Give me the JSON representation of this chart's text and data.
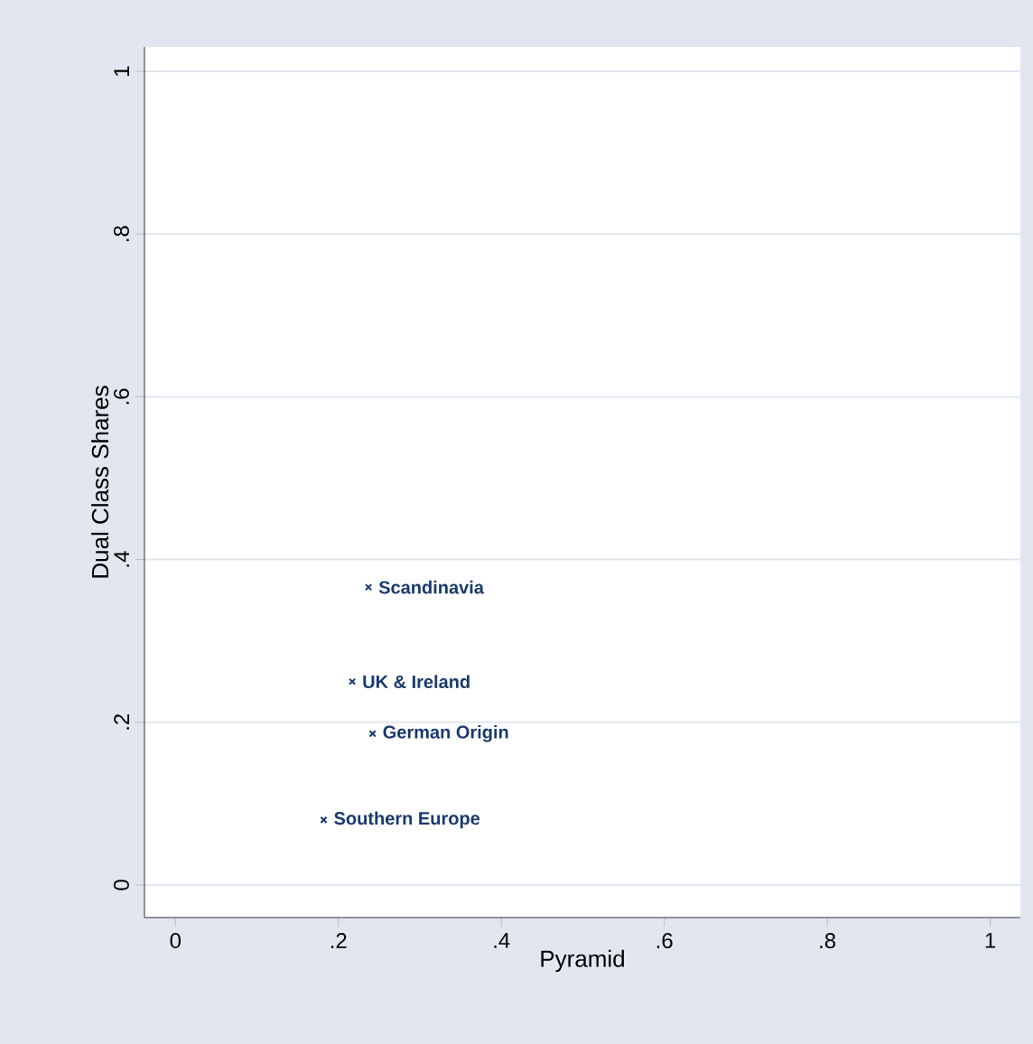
{
  "chart_data": {
    "type": "scatter",
    "xlabel": "Pyramid",
    "ylabel": "Dual Class Shares",
    "x": [
      0.237,
      0.217,
      0.242,
      0.182
    ],
    "values": [
      0.366,
      0.25,
      0.186,
      0.08
    ],
    "color": "#1a3a6e",
    "marker": "cross",
    "grid": "y",
    "xlim": [
      -0.038,
      1.037
    ],
    "ylim": [
      -0.04,
      1.03
    ],
    "xticks": [
      0,
      {
        "value": 0.2,
        "label": ".2"
      },
      {
        "value": 0.4,
        "label": ".4"
      },
      {
        "value": 0.6,
        "label": ".6"
      },
      {
        "value": 0.8,
        "label": ".8"
      },
      1
    ],
    "yticks": [
      0,
      {
        "value": 0.2,
        "label": ".2"
      },
      {
        "value": 0.4,
        "label": ".4"
      },
      {
        "value": 0.6,
        "label": ".6"
      },
      {
        "value": 0.8,
        "label": ".8"
      },
      1
    ],
    "annotations": [
      {
        "text": "Scandinavia",
        "x": 0.237,
        "y": 0.366
      },
      {
        "text": "UK & Ireland",
        "x": 0.217,
        "y": 0.25
      },
      {
        "text": "German Origin",
        "x": 0.242,
        "y": 0.186
      },
      {
        "text": "Southern Europe",
        "x": 0.182,
        "y": 0.08
      }
    ]
  }
}
